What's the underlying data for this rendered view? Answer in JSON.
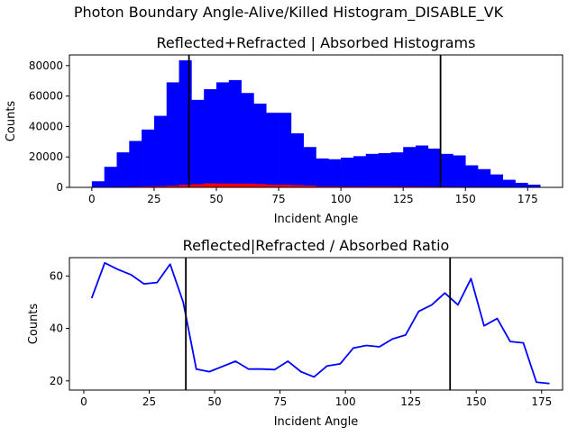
{
  "suptitle": "Photon Boundary Angle-Alive/Killed Histogram_DISABLE_VK",
  "chart_data": [
    {
      "type": "bar",
      "title": "Reflected+Refracted | Absorbed Histograms",
      "xlabel": "Incident Angle",
      "ylabel": "Counts",
      "xlim": [
        -9,
        189
      ],
      "ylim": [
        0,
        87000
      ],
      "xticks": [
        0,
        25,
        50,
        75,
        100,
        125,
        150,
        175
      ],
      "yticks": [
        0,
        20000,
        40000,
        60000,
        80000
      ],
      "ytick_labels": [
        "0",
        "20000",
        "40000",
        "60000",
        "80000"
      ],
      "bin_width": 5,
      "bin_starts": [
        0,
        5,
        10,
        15,
        20,
        25,
        30,
        35,
        40,
        45,
        50,
        55,
        60,
        65,
        70,
        75,
        80,
        85,
        90,
        95,
        100,
        105,
        110,
        115,
        120,
        125,
        130,
        135,
        140,
        145,
        150,
        155,
        160,
        165,
        170,
        175
      ],
      "series": [
        {
          "color": "#0000ff",
          "values": [
            4000,
            13500,
            23000,
            30500,
            38000,
            47000,
            69000,
            83500,
            57500,
            64500,
            69000,
            70500,
            62000,
            55000,
            49000,
            49000,
            35500,
            26500,
            19000,
            18500,
            19500,
            20500,
            22000,
            22500,
            23000,
            26500,
            27500,
            25500,
            22000,
            21000,
            14500,
            12000,
            8500,
            5000,
            3000,
            1800
          ]
        },
        {
          "color": "#ff0000",
          "values": [
            80,
            200,
            370,
            500,
            670,
            820,
            1100,
            1700,
            2100,
            2650,
            2550,
            2500,
            2450,
            2200,
            1800,
            1750,
            1500,
            1200,
            700,
            680,
            560,
            580,
            660,
            690,
            610,
            550,
            540,
            490,
            420,
            390,
            350,
            340,
            240,
            150,
            90,
            100
          ]
        }
      ],
      "vlines": [
        39,
        140
      ],
      "vline_color": "#000000"
    },
    {
      "type": "line",
      "title": "Reflected|Refracted / Absorbed Ratio",
      "xlabel": "Incident Angle",
      "ylabel": "Counts",
      "xlim": [
        -5.5,
        183
      ],
      "ylim": [
        16.5,
        67
      ],
      "xticks": [
        0,
        25,
        50,
        75,
        100,
        125,
        150,
        175
      ],
      "yticks": [
        20,
        40,
        60
      ],
      "ytick_labels": [
        "20",
        "40",
        "60"
      ],
      "series": [
        {
          "color": "#0000ff",
          "x": [
            3,
            8,
            13,
            18,
            23,
            28,
            33,
            38,
            43,
            48,
            53,
            58,
            63,
            68,
            73,
            78,
            83,
            88,
            93,
            98,
            103,
            108,
            113,
            118,
            123,
            128,
            133,
            138,
            143,
            148,
            153,
            158,
            163,
            168,
            173,
            178
          ],
          "y": [
            51.5,
            65,
            62.5,
            60.5,
            57,
            57.5,
            64.5,
            50,
            24.5,
            23.5,
            25.5,
            27.5,
            24.5,
            24.5,
            24.3,
            27.5,
            23.5,
            21.5,
            25.7,
            26.5,
            32.5,
            33.5,
            33,
            36,
            37.5,
            46.5,
            49,
            53.5,
            49,
            59,
            41,
            43.8,
            35,
            34.5,
            19.5,
            19
          ]
        }
      ],
      "vlines": [
        39,
        140
      ],
      "vline_color": "#000000"
    }
  ]
}
